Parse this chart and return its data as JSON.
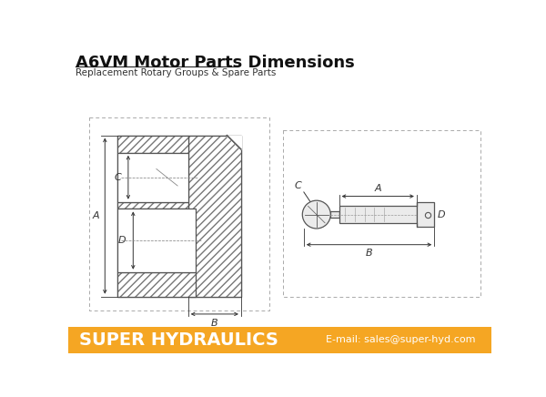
{
  "title": "A6VM Motor Parts Dimensions",
  "subtitle": "Replacement Rotary Groups & Spare Parts",
  "footer_bg": "#F5A623",
  "footer_text": "SUPER HYDRAULICS",
  "footer_email": "E-mail: sales@super-hyd.com",
  "bg_color": "#FFFFFF",
  "line_color": "#555555",
  "hatch_color": "#888888",
  "dim_color": "#333333",
  "title_fontsize": 13,
  "subtitle_fontsize": 7.5,
  "footer_fontsize": 14
}
